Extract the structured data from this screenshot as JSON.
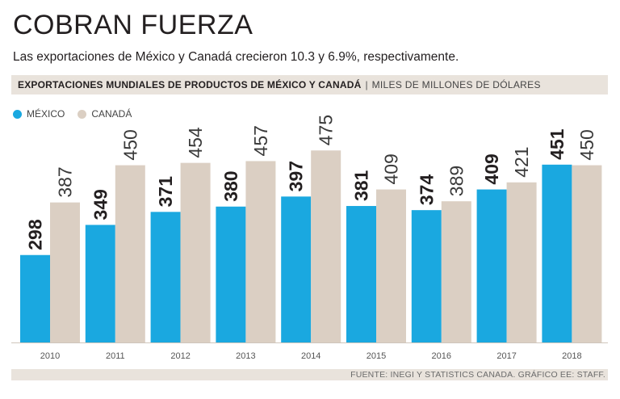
{
  "header": {
    "title": "COBRAN FUERZA",
    "subtitle": "Las exportaciones de México y Canadá crecieron 10.3 y 6.9%, respectivamente.",
    "band_title": "EXPORTACIONES MUNDIALES DE PRODUCTOS DE MÉXICO Y CANADÁ",
    "band_separator": "|",
    "band_unit": "MILES DE MILLONES DE DÓLARES"
  },
  "source": "FUENTE: INEGI Y STATISTICS CANADA. GRÁFICO EE: STAFF.",
  "colors": {
    "mexico": "#1aa8e0",
    "canada": "#dbcfc3",
    "band": "#e9e3dc"
  },
  "chart_data": {
    "type": "bar",
    "categories": [
      "2010",
      "2011",
      "2012",
      "2013",
      "2014",
      "2015",
      "2016",
      "2017",
      "2018"
    ],
    "series": [
      {
        "name": "MÉXICO",
        "values": [
          298,
          349,
          371,
          380,
          397,
          381,
          374,
          409,
          451
        ],
        "color": "#1aa8e0"
      },
      {
        "name": "CANADÁ",
        "values": [
          387,
          450,
          454,
          457,
          475,
          409,
          389,
          421,
          450
        ],
        "color": "#dbcfc3"
      }
    ],
    "ylim": [
      150,
      500
    ],
    "title": "",
    "xlabel": "",
    "ylabel": "",
    "legend": "top-left",
    "grid": false
  }
}
